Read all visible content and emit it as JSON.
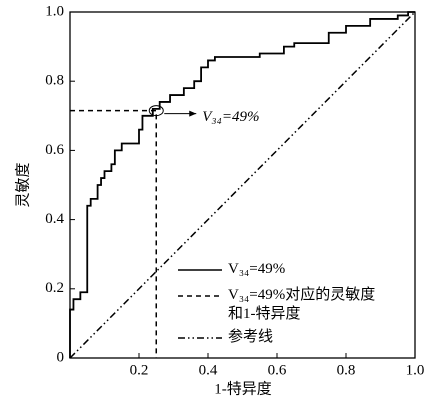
{
  "chart_data": {
    "type": "line",
    "x_label": "1-特异度",
    "y_label": "灵敏度",
    "xlim": [
      0,
      1
    ],
    "ylim": [
      0,
      1
    ],
    "xticks": [
      0.2,
      0.4,
      0.6,
      0.8,
      {
        "value": 1,
        "label": "1.0"
      }
    ],
    "yticks": [
      0,
      0.2,
      0.4,
      0.6,
      0.8,
      {
        "value": 1,
        "label": "1.0"
      }
    ],
    "annotation": "V₃₄=49%",
    "series": [
      {
        "name": "V₃₄=49%",
        "color": "#000000",
        "dash": "solid",
        "x": [
          0,
          0,
          0.01,
          0.01,
          0.03,
          0.03,
          0.05,
          0.05,
          0.06,
          0.06,
          0.08,
          0.08,
          0.09,
          0.09,
          0.1,
          0.1,
          0.12,
          0.12,
          0.13,
          0.13,
          0.15,
          0.15,
          0.2,
          0.2,
          0.21,
          0.21,
          0.24,
          0.24,
          0.26,
          0.26,
          0.29,
          0.29,
          0.33,
          0.33,
          0.36,
          0.36,
          0.38,
          0.38,
          0.4,
          0.4,
          0.42,
          0.42,
          0.55,
          0.55,
          0.62,
          0.62,
          0.65,
          0.65,
          0.75,
          0.75,
          0.8,
          0.8,
          0.87,
          0.87,
          0.95,
          0.95,
          0.98,
          0.98,
          1
        ],
        "values": [
          0,
          0.14,
          0.14,
          0.17,
          0.17,
          0.19,
          0.19,
          0.44,
          0.44,
          0.46,
          0.46,
          0.5,
          0.5,
          0.52,
          0.52,
          0.54,
          0.54,
          0.56,
          0.56,
          0.6,
          0.6,
          0.62,
          0.62,
          0.66,
          0.66,
          0.7,
          0.7,
          0.72,
          0.72,
          0.74,
          0.74,
          0.76,
          0.76,
          0.78,
          0.78,
          0.8,
          0.8,
          0.84,
          0.84,
          0.86,
          0.86,
          0.87,
          0.87,
          0.88,
          0.88,
          0.9,
          0.9,
          0.91,
          0.91,
          0.94,
          0.94,
          0.96,
          0.96,
          0.98,
          0.98,
          0.99,
          0.99,
          1,
          1
        ]
      },
      {
        "name": "V₃₄=49%对应的灵敏度\n和1-特异度",
        "color": "#000000",
        "dash": "dashed",
        "x": [
          0,
          0.25,
          0.25
        ],
        "values": [
          0.715,
          0.715,
          0
        ]
      },
      {
        "name": "参考线",
        "color": "#000000",
        "dash": "dashdotdot",
        "x": [
          0,
          1
        ],
        "values": [
          0,
          1
        ]
      }
    ]
  }
}
